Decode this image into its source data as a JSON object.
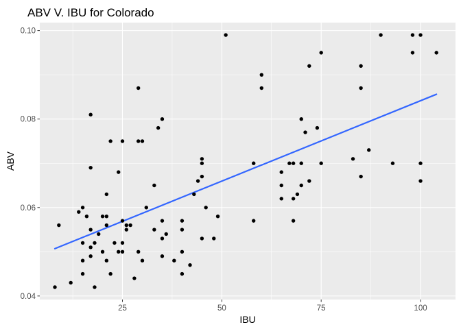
{
  "chart_data": {
    "type": "scatter",
    "title": "ABV V. IBU for Colorado",
    "xlabel": "IBU",
    "ylabel": "ABV",
    "xlim": [
      4.2,
      108.8
    ],
    "ylim": [
      0.0392,
      0.1018
    ],
    "xticks": [
      25,
      50,
      75,
      100
    ],
    "xtick_labels": [
      "25",
      "50",
      "75",
      "100"
    ],
    "yticks": [
      0.04,
      0.06,
      0.08,
      0.1
    ],
    "ytick_labels": [
      "0.04",
      "0.06",
      "0.08",
      "0.10"
    ],
    "grid": true,
    "legend": "none",
    "point_color": "#000000",
    "trend_color": "#3366ff",
    "panel_color": "#ebebeb",
    "grid_color": "#ffffff",
    "trend_line": {
      "x": [
        8,
        104
      ],
      "y": [
        0.0507,
        0.0856
      ]
    },
    "points": [
      {
        "x": 8,
        "y": 0.042
      },
      {
        "x": 9,
        "y": 0.056
      },
      {
        "x": 12,
        "y": 0.043
      },
      {
        "x": 14,
        "y": 0.059
      },
      {
        "x": 15,
        "y": 0.048
      },
      {
        "x": 15,
        "y": 0.045
      },
      {
        "x": 15,
        "y": 0.052
      },
      {
        "x": 15,
        "y": 0.06
      },
      {
        "x": 16,
        "y": 0.058
      },
      {
        "x": 17,
        "y": 0.081
      },
      {
        "x": 17,
        "y": 0.069
      },
      {
        "x": 17,
        "y": 0.055
      },
      {
        "x": 17,
        "y": 0.051
      },
      {
        "x": 17,
        "y": 0.049
      },
      {
        "x": 18,
        "y": 0.052
      },
      {
        "x": 18,
        "y": 0.042
      },
      {
        "x": 19,
        "y": 0.054
      },
      {
        "x": 20,
        "y": 0.058
      },
      {
        "x": 20,
        "y": 0.05
      },
      {
        "x": 21,
        "y": 0.063
      },
      {
        "x": 21,
        "y": 0.058
      },
      {
        "x": 21,
        "y": 0.056
      },
      {
        "x": 21,
        "y": 0.048
      },
      {
        "x": 22,
        "y": 0.075
      },
      {
        "x": 22,
        "y": 0.045
      },
      {
        "x": 23,
        "y": 0.052
      },
      {
        "x": 24,
        "y": 0.068
      },
      {
        "x": 24,
        "y": 0.05
      },
      {
        "x": 25,
        "y": 0.075
      },
      {
        "x": 25,
        "y": 0.057
      },
      {
        "x": 25,
        "y": 0.052
      },
      {
        "x": 25,
        "y": 0.05
      },
      {
        "x": 26,
        "y": 0.056
      },
      {
        "x": 26,
        "y": 0.055
      },
      {
        "x": 27,
        "y": 0.056
      },
      {
        "x": 28,
        "y": 0.044
      },
      {
        "x": 29,
        "y": 0.087
      },
      {
        "x": 29,
        "y": 0.075
      },
      {
        "x": 29,
        "y": 0.05
      },
      {
        "x": 30,
        "y": 0.075
      },
      {
        "x": 30,
        "y": 0.048
      },
      {
        "x": 31,
        "y": 0.06
      },
      {
        "x": 33,
        "y": 0.065
      },
      {
        "x": 33,
        "y": 0.055
      },
      {
        "x": 34,
        "y": 0.078
      },
      {
        "x": 35,
        "y": 0.08
      },
      {
        "x": 35,
        "y": 0.057
      },
      {
        "x": 35,
        "y": 0.053
      },
      {
        "x": 35,
        "y": 0.049
      },
      {
        "x": 36,
        "y": 0.054
      },
      {
        "x": 38,
        "y": 0.048
      },
      {
        "x": 40,
        "y": 0.057
      },
      {
        "x": 40,
        "y": 0.055
      },
      {
        "x": 40,
        "y": 0.05
      },
      {
        "x": 40,
        "y": 0.045
      },
      {
        "x": 42,
        "y": 0.047
      },
      {
        "x": 43,
        "y": 0.063
      },
      {
        "x": 44,
        "y": 0.066
      },
      {
        "x": 45,
        "y": 0.071
      },
      {
        "x": 45,
        "y": 0.07
      },
      {
        "x": 45,
        "y": 0.067
      },
      {
        "x": 45,
        "y": 0.053
      },
      {
        "x": 46,
        "y": 0.06
      },
      {
        "x": 48,
        "y": 0.053
      },
      {
        "x": 49,
        "y": 0.058
      },
      {
        "x": 51,
        "y": 0.099
      },
      {
        "x": 58,
        "y": 0.07
      },
      {
        "x": 58,
        "y": 0.057
      },
      {
        "x": 60,
        "y": 0.09
      },
      {
        "x": 60,
        "y": 0.087
      },
      {
        "x": 65,
        "y": 0.068
      },
      {
        "x": 65,
        "y": 0.065
      },
      {
        "x": 65,
        "y": 0.062
      },
      {
        "x": 67,
        "y": 0.07
      },
      {
        "x": 68,
        "y": 0.07
      },
      {
        "x": 68,
        "y": 0.062
      },
      {
        "x": 68,
        "y": 0.057
      },
      {
        "x": 69,
        "y": 0.063
      },
      {
        "x": 70,
        "y": 0.08
      },
      {
        "x": 70,
        "y": 0.07
      },
      {
        "x": 70,
        "y": 0.065
      },
      {
        "x": 71,
        "y": 0.077
      },
      {
        "x": 72,
        "y": 0.092
      },
      {
        "x": 72,
        "y": 0.066
      },
      {
        "x": 74,
        "y": 0.078
      },
      {
        "x": 75,
        "y": 0.095
      },
      {
        "x": 75,
        "y": 0.07
      },
      {
        "x": 83,
        "y": 0.071
      },
      {
        "x": 85,
        "y": 0.092
      },
      {
        "x": 85,
        "y": 0.087
      },
      {
        "x": 85,
        "y": 0.067
      },
      {
        "x": 87,
        "y": 0.073
      },
      {
        "x": 90,
        "y": 0.099
      },
      {
        "x": 93,
        "y": 0.07
      },
      {
        "x": 98,
        "y": 0.099
      },
      {
        "x": 98,
        "y": 0.095
      },
      {
        "x": 100,
        "y": 0.099
      },
      {
        "x": 100,
        "y": 0.07
      },
      {
        "x": 100,
        "y": 0.066
      },
      {
        "x": 104,
        "y": 0.095
      }
    ]
  }
}
